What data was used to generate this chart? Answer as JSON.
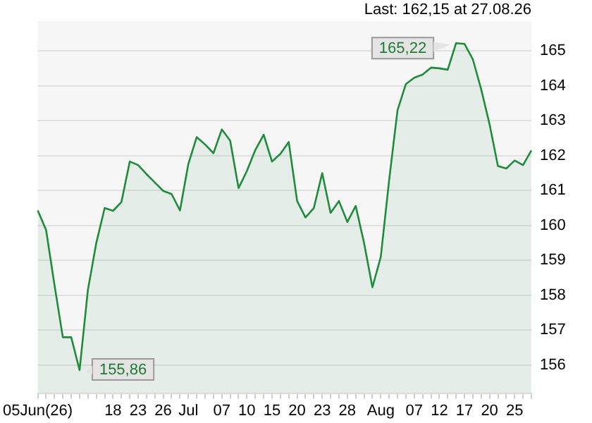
{
  "chart_data": {
    "type": "area",
    "categories": [
      "05Jun(26)",
      null,
      null,
      null,
      null,
      null,
      null,
      null,
      null,
      "18",
      null,
      null,
      "23",
      null,
      null,
      "26",
      null,
      null,
      "Jul",
      null,
      null,
      null,
      "07",
      null,
      null,
      "10",
      null,
      null,
      "15",
      null,
      null,
      "20",
      null,
      null,
      "23",
      null,
      null,
      "28",
      null,
      null,
      null,
      "Aug",
      null,
      null,
      null,
      "07",
      null,
      null,
      "12",
      null,
      null,
      "17",
      null,
      null,
      "20",
      null,
      null,
      "25",
      null,
      null
    ],
    "series": [
      {
        "color": "#1e8c3a",
        "values": [
          160.43,
          159.87,
          158.3,
          156.8,
          156.8,
          155.86,
          158.16,
          159.5,
          160.5,
          160.42,
          160.67,
          161.83,
          161.73,
          161.47,
          161.23,
          160.99,
          160.9,
          160.43,
          161.76,
          162.53,
          162.32,
          162.07,
          162.75,
          162.43,
          161.07,
          161.56,
          162.16,
          162.6,
          161.83,
          162.05,
          162.39,
          160.7,
          160.23,
          160.5,
          161.5,
          160.36,
          160.7,
          160.1,
          160.56,
          159.5,
          158.23,
          159.1,
          161.3,
          163.3,
          164.05,
          164.23,
          164.32,
          164.52,
          164.5,
          164.46,
          165.22,
          165.2,
          164.76,
          163.9,
          162.9,
          161.7,
          161.63,
          161.86,
          161.73,
          162.15
        ]
      }
    ],
    "ylim": [
      155.2,
      165.85
    ],
    "yticks": [
      156,
      157,
      158,
      159,
      160,
      161,
      162,
      163,
      164,
      165
    ],
    "grid": "y",
    "legend": false,
    "marker": "none",
    "line_style": "solid",
    "annotations": [
      "Last: 162,15 at 27.08.26",
      "165,22",
      "155,86"
    ]
  }
}
